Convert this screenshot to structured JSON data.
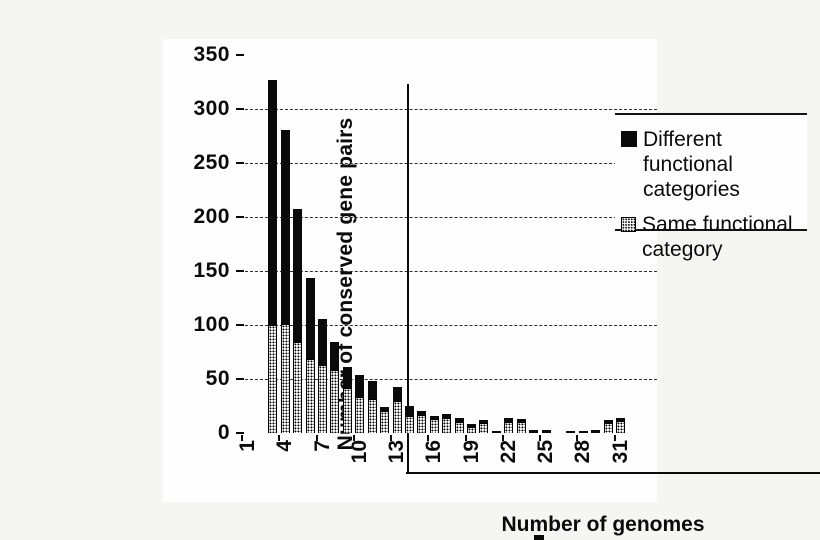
{
  "chart_data": {
    "type": "bar",
    "stacking": "stacked",
    "title": "",
    "xlabel": "Number of genomes",
    "ylabel": "Number of conserved gene pairs",
    "x_tick_labels": [
      "1",
      "4",
      "7",
      "10",
      "13",
      "16",
      "19",
      "22",
      "25",
      "28",
      "31"
    ],
    "y_tick_values": [
      0,
      50,
      100,
      150,
      200,
      250,
      300,
      350
    ],
    "ylim": [
      0,
      350
    ],
    "grid": "horizontal lines at 50..300",
    "legend_position": "upper right, boxed",
    "categories": [
      3,
      4,
      5,
      6,
      7,
      8,
      9,
      10,
      11,
      12,
      13,
      14,
      15,
      16,
      17,
      18,
      19,
      20,
      21,
      22,
      23,
      24,
      25,
      26,
      27,
      28,
      29,
      30,
      31
    ],
    "bar_totals": [
      327,
      280,
      207,
      143,
      105,
      84,
      61,
      54,
      48,
      24,
      43,
      25,
      20,
      16,
      18,
      14,
      8,
      12,
      2,
      14,
      13,
      3,
      3,
      0,
      2,
      2,
      3,
      12,
      14
    ],
    "series": [
      {
        "name": "Different functional categories",
        "legend_lines": [
          "Different functional",
          "categories"
        ],
        "swatch": "solid-black",
        "color": "#0a0a0a",
        "stack_position": "top",
        "values": [
          227,
          179,
          123,
          75,
          42,
          26,
          19,
          21,
          17,
          4,
          13,
          9,
          3,
          3,
          4,
          4,
          2,
          3,
          1,
          4,
          3,
          2,
          2,
          0,
          1,
          1,
          2,
          3,
          3
        ]
      },
      {
        "name": "Same functional category",
        "legend_lines": [
          "Same functional",
          "category"
        ],
        "swatch": "stippled",
        "color": "#0a0a0a dots on #ffffff",
        "stack_position": "bottom",
        "values": [
          100,
          101,
          84,
          68,
          63,
          58,
          42,
          33,
          31,
          20,
          30,
          16,
          17,
          13,
          14,
          10,
          6,
          9,
          1,
          10,
          10,
          1,
          1,
          0,
          1,
          1,
          1,
          9,
          11
        ]
      }
    ]
  }
}
